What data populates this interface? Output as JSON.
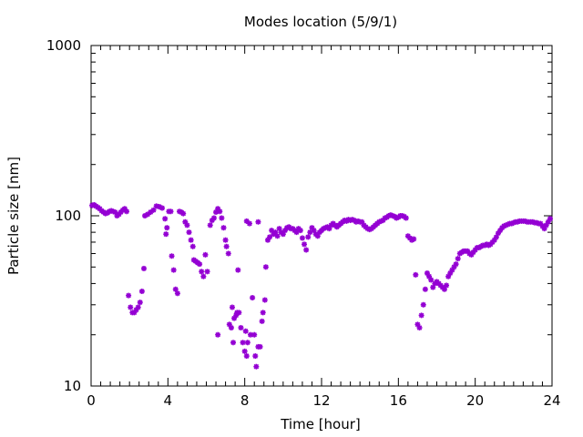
{
  "chart_data": {
    "type": "scatter",
    "title": "Modes location (5/9/1)",
    "xlabel": "Time [hour]",
    "ylabel": "Particle size [nm]",
    "xlim": [
      0,
      24
    ],
    "ylim": [
      10,
      1000
    ],
    "yscale": "log",
    "xticks": [
      0,
      4,
      8,
      12,
      16,
      20,
      24
    ],
    "yticks": [
      10,
      100,
      1000
    ],
    "xtick_labels": [
      "0",
      "4",
      "8",
      "12",
      "16",
      "20",
      "24"
    ],
    "ytick_labels": [
      "10",
      "100",
      "1000"
    ],
    "grid": false,
    "legend": false,
    "marker_color": "#9400d3",
    "series": [
      {
        "points": [
          [
            0.05,
            115
          ],
          [
            0.15,
            116
          ],
          [
            0.25,
            114
          ],
          [
            0.35,
            112
          ],
          [
            0.45,
            110
          ],
          [
            0.55,
            107
          ],
          [
            0.65,
            105
          ],
          [
            0.75,
            103
          ],
          [
            0.85,
            104
          ],
          [
            0.95,
            106
          ],
          [
            1.05,
            107
          ],
          [
            1.15,
            106
          ],
          [
            1.25,
            105
          ],
          [
            1.35,
            100
          ],
          [
            1.45,
            102
          ],
          [
            1.55,
            105
          ],
          [
            1.65,
            108
          ],
          [
            1.75,
            110
          ],
          [
            1.85,
            106
          ],
          [
            1.95,
            34
          ],
          [
            2.05,
            29
          ],
          [
            2.15,
            27
          ],
          [
            2.25,
            27
          ],
          [
            2.35,
            28
          ],
          [
            2.45,
            29
          ],
          [
            2.55,
            31
          ],
          [
            2.65,
            36
          ],
          [
            2.75,
            49
          ],
          [
            2.8,
            100
          ],
          [
            2.95,
            102
          ],
          [
            3.1,
            105
          ],
          [
            3.25,
            108
          ],
          [
            3.4,
            114
          ],
          [
            3.55,
            113
          ],
          [
            3.7,
            111
          ],
          [
            3.85,
            96
          ],
          [
            3.9,
            78
          ],
          [
            3.95,
            85
          ],
          [
            4.05,
            106
          ],
          [
            4.15,
            106
          ],
          [
            4.2,
            58
          ],
          [
            4.3,
            48
          ],
          [
            4.4,
            37
          ],
          [
            4.5,
            35
          ],
          [
            4.6,
            106
          ],
          [
            4.7,
            105
          ],
          [
            4.8,
            103
          ],
          [
            4.9,
            92
          ],
          [
            5.0,
            88
          ],
          [
            5.1,
            80
          ],
          [
            5.2,
            72
          ],
          [
            5.3,
            66
          ],
          [
            5.35,
            55
          ],
          [
            5.45,
            54
          ],
          [
            5.55,
            53
          ],
          [
            5.65,
            52
          ],
          [
            5.75,
            47
          ],
          [
            5.85,
            44
          ],
          [
            5.95,
            59
          ],
          [
            6.05,
            47
          ],
          [
            6.2,
            88
          ],
          [
            6.3,
            94
          ],
          [
            6.4,
            97
          ],
          [
            6.5,
            105
          ],
          [
            6.6,
            110
          ],
          [
            6.7,
            106
          ],
          [
            6.8,
            97
          ],
          [
            6.9,
            85
          ],
          [
            7.0,
            72
          ],
          [
            7.05,
            66
          ],
          [
            7.15,
            60
          ],
          [
            6.6,
            20
          ],
          [
            7.2,
            23
          ],
          [
            7.3,
            22
          ],
          [
            7.35,
            29
          ],
          [
            7.4,
            18
          ],
          [
            7.45,
            25
          ],
          [
            7.55,
            26
          ],
          [
            7.6,
            27
          ],
          [
            7.65,
            48
          ],
          [
            7.7,
            27
          ],
          [
            7.8,
            22
          ],
          [
            7.9,
            18
          ],
          [
            8.0,
            16
          ],
          [
            8.05,
            21
          ],
          [
            8.1,
            15
          ],
          [
            8.15,
            18
          ],
          [
            8.3,
            20
          ],
          [
            8.4,
            33
          ],
          [
            8.5,
            20
          ],
          [
            8.55,
            15
          ],
          [
            8.6,
            13
          ],
          [
            8.7,
            17
          ],
          [
            8.8,
            17
          ],
          [
            8.9,
            24
          ],
          [
            8.95,
            27
          ],
          [
            9.05,
            32
          ],
          [
            9.1,
            50
          ],
          [
            8.1,
            93
          ],
          [
            8.25,
            90
          ],
          [
            8.7,
            92
          ],
          [
            9.2,
            72
          ],
          [
            9.3,
            75
          ],
          [
            9.4,
            82
          ],
          [
            9.5,
            78
          ],
          [
            9.6,
            80
          ],
          [
            9.7,
            76
          ],
          [
            9.8,
            84
          ],
          [
            9.9,
            80
          ],
          [
            10.0,
            78
          ],
          [
            10.1,
            82
          ],
          [
            10.2,
            85
          ],
          [
            10.3,
            86
          ],
          [
            10.4,
            84
          ],
          [
            10.5,
            84
          ],
          [
            10.6,
            82
          ],
          [
            10.7,
            80
          ],
          [
            10.8,
            84
          ],
          [
            10.9,
            82
          ],
          [
            11.0,
            74
          ],
          [
            11.1,
            68
          ],
          [
            11.2,
            63
          ],
          [
            11.3,
            75
          ],
          [
            11.4,
            80
          ],
          [
            11.5,
            85
          ],
          [
            11.6,
            82
          ],
          [
            11.7,
            78
          ],
          [
            11.8,
            76
          ],
          [
            11.9,
            80
          ],
          [
            12.0,
            82
          ],
          [
            12.1,
            84
          ],
          [
            12.2,
            85
          ],
          [
            12.3,
            86
          ],
          [
            12.4,
            84
          ],
          [
            12.5,
            88
          ],
          [
            12.6,
            90
          ],
          [
            12.7,
            88
          ],
          [
            12.8,
            86
          ],
          [
            12.9,
            88
          ],
          [
            13.0,
            90
          ],
          [
            13.1,
            92
          ],
          [
            13.2,
            94
          ],
          [
            13.3,
            93
          ],
          [
            13.4,
            95
          ],
          [
            13.5,
            94
          ],
          [
            13.6,
            95
          ],
          [
            13.7,
            94
          ],
          [
            13.8,
            92
          ],
          [
            13.9,
            93
          ],
          [
            14.0,
            92
          ],
          [
            14.1,
            92
          ],
          [
            14.2,
            88
          ],
          [
            14.3,
            86
          ],
          [
            14.4,
            84
          ],
          [
            14.5,
            83
          ],
          [
            14.6,
            84
          ],
          [
            14.7,
            86
          ],
          [
            14.8,
            88
          ],
          [
            14.9,
            90
          ],
          [
            15.0,
            92
          ],
          [
            15.1,
            93
          ],
          [
            15.2,
            94
          ],
          [
            15.3,
            97
          ],
          [
            15.4,
            98
          ],
          [
            15.5,
            100
          ],
          [
            15.6,
            101
          ],
          [
            15.7,
            100
          ],
          [
            15.8,
            99
          ],
          [
            15.9,
            97
          ],
          [
            16.0,
            98
          ],
          [
            16.1,
            100
          ],
          [
            16.2,
            100
          ],
          [
            16.3,
            99
          ],
          [
            16.4,
            97
          ],
          [
            16.5,
            76
          ],
          [
            16.6,
            74
          ],
          [
            16.7,
            72
          ],
          [
            16.8,
            73
          ],
          [
            16.9,
            45
          ],
          [
            17.0,
            23
          ],
          [
            17.1,
            22
          ],
          [
            17.2,
            26
          ],
          [
            17.3,
            30
          ],
          [
            17.4,
            37
          ],
          [
            17.5,
            46
          ],
          [
            17.6,
            44
          ],
          [
            17.7,
            42
          ],
          [
            17.8,
            38
          ],
          [
            17.9,
            40
          ],
          [
            18.0,
            41
          ],
          [
            18.1,
            40
          ],
          [
            18.2,
            39
          ],
          [
            18.3,
            38
          ],
          [
            18.4,
            37
          ],
          [
            18.5,
            39
          ],
          [
            18.6,
            44
          ],
          [
            18.7,
            46
          ],
          [
            18.8,
            48
          ],
          [
            18.9,
            50
          ],
          [
            19.0,
            52
          ],
          [
            19.1,
            56
          ],
          [
            19.2,
            60
          ],
          [
            19.3,
            61
          ],
          [
            19.4,
            62
          ],
          [
            19.5,
            62
          ],
          [
            19.6,
            62
          ],
          [
            19.7,
            60
          ],
          [
            19.8,
            59
          ],
          [
            19.9,
            61
          ],
          [
            20.0,
            63
          ],
          [
            20.1,
            65
          ],
          [
            20.2,
            65
          ],
          [
            20.3,
            66
          ],
          [
            20.4,
            67
          ],
          [
            20.5,
            67
          ],
          [
            20.6,
            68
          ],
          [
            20.7,
            67
          ],
          [
            20.8,
            68
          ],
          [
            20.9,
            70
          ],
          [
            21.0,
            72
          ],
          [
            21.1,
            75
          ],
          [
            21.2,
            79
          ],
          [
            21.3,
            82
          ],
          [
            21.4,
            85
          ],
          [
            21.5,
            87
          ],
          [
            21.6,
            88
          ],
          [
            21.7,
            89
          ],
          [
            21.8,
            90
          ],
          [
            21.9,
            90
          ],
          [
            22.0,
            91
          ],
          [
            22.1,
            92
          ],
          [
            22.2,
            92
          ],
          [
            22.3,
            93
          ],
          [
            22.4,
            93
          ],
          [
            22.5,
            93
          ],
          [
            22.6,
            93
          ],
          [
            22.7,
            92
          ],
          [
            22.8,
            92
          ],
          [
            22.9,
            92
          ],
          [
            23.0,
            92
          ],
          [
            23.1,
            91
          ],
          [
            23.2,
            91
          ],
          [
            23.3,
            90
          ],
          [
            23.4,
            90
          ],
          [
            23.5,
            87
          ],
          [
            23.6,
            84
          ],
          [
            23.7,
            88
          ],
          [
            23.8,
            92
          ],
          [
            23.9,
            96
          ]
        ]
      }
    ]
  }
}
